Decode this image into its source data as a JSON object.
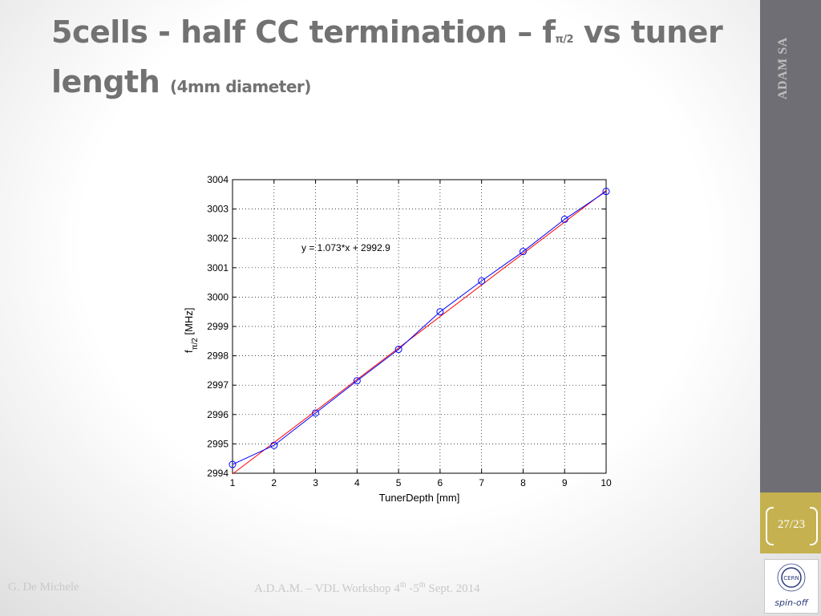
{
  "slide": {
    "title_part1": "5cells - half CC termination – f",
    "title_subscript": "π/2",
    "title_part2": " vs tuner length ",
    "title_small": "(4mm diameter)",
    "sidebar_label": "ADAM SA",
    "page_number": "27/23",
    "logo_text": "spin-off",
    "logo_inner_text": "CERN",
    "footer_left": "G. De Michele",
    "footer_mid_a": "A.D.A.M. – VDL Workshop  4",
    "footer_mid_sup1": "th",
    "footer_mid_b": " -5",
    "footer_mid_sup2": "th",
    "footer_mid_c": "  Sept. 2014"
  },
  "colors": {
    "sidebar": "#6f6e74",
    "page_box": "#c5b14f",
    "title": "#727272",
    "data_line": "#0000ff",
    "fit_line": "#ff0000"
  },
  "chart_data": {
    "type": "line",
    "xlabel": "TunerDepth [mm]",
    "ylabel_main": "f",
    "ylabel_sub": "π/2",
    "ylabel_unit": " [MHz]",
    "annotation": "y = 1.073*x + 2992.9",
    "xlim": [
      1,
      10
    ],
    "ylim": [
      2994,
      3004
    ],
    "xticks": [
      1,
      2,
      3,
      4,
      5,
      6,
      7,
      8,
      9,
      10
    ],
    "yticks": [
      2994,
      2995,
      2996,
      2997,
      2998,
      2999,
      3000,
      3001,
      3002,
      3003,
      3004
    ],
    "grid": true,
    "series": [
      {
        "x": [
          1,
          2,
          3,
          4,
          5,
          6,
          7,
          8,
          9,
          10
        ],
        "y": [
          2994.3,
          2994.95,
          2996.05,
          2997.15,
          2998.22,
          2999.5,
          3000.55,
          3001.55,
          3002.65,
          3003.6
        ],
        "marker": "circle",
        "color": "#0000ff"
      }
    ],
    "fit": {
      "slope": 1.073,
      "intercept": 2992.9,
      "color": "#ff0000"
    }
  }
}
